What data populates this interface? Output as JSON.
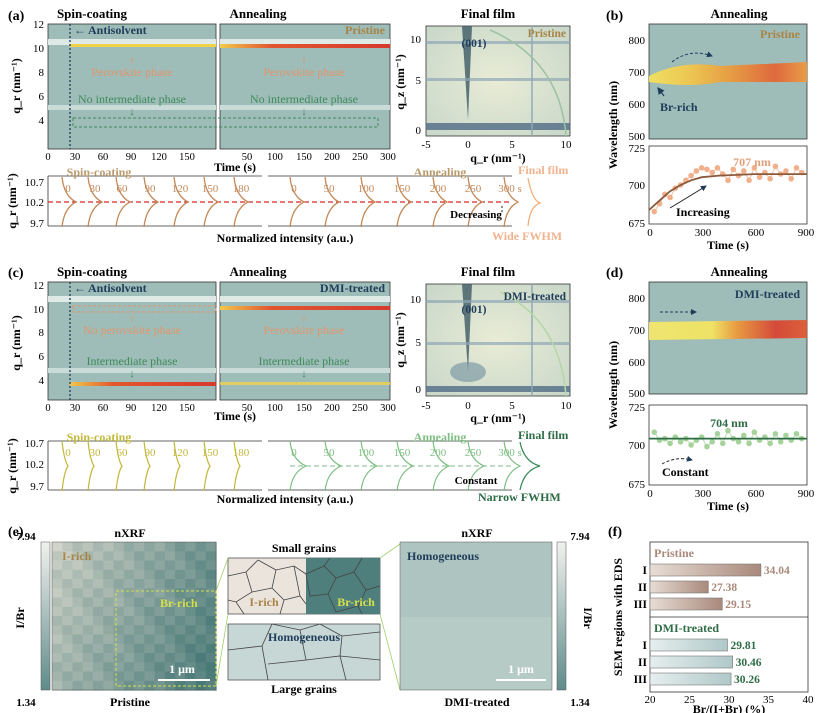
{
  "panels": {
    "a": {
      "label": "(a)",
      "titles": {
        "spin": "Spin-coating",
        "anneal": "Annealing",
        "final": "Final film"
      },
      "ylabel": "q_r (nm⁻¹)",
      "yticks": [
        "12",
        "10",
        "8",
        "6",
        "4"
      ],
      "xlabel": "Time (s)",
      "xticks": [
        "0",
        "30",
        "60",
        "90",
        "120",
        "150",
        "50",
        "100",
        "150",
        "200",
        "250",
        "300"
      ],
      "annotations": {
        "antisolvent": "Antisolvent",
        "pristine": "Pristine",
        "phase1": "Perovskite phase",
        "phase2": "No intermediate phase",
        "phase3": "Perovskite phase",
        "phase4": "No intermediate phase"
      },
      "final": {
        "tag": "Pristine",
        "peak": "(001)",
        "xlabel": "q_r (nm⁻¹)",
        "ylabel": "q_z (nm⁻¹)",
        "xticks": [
          "-5",
          "0",
          "5",
          "10"
        ],
        "yticks": [
          "10",
          "5",
          "0"
        ]
      },
      "profile": {
        "ylabel": "q_r (nm⁻¹)",
        "yticks": [
          "10.7",
          "10.2",
          "9.7"
        ],
        "xlabel": "Normalized intensity (a.u.)",
        "spin_label": "Spin-coating",
        "anneal_label": "Annealing",
        "final_label": "Final film",
        "spin_times": [
          "0",
          "30",
          "60",
          "90",
          "120",
          "150",
          "180"
        ],
        "anneal_times": [
          "0",
          "50",
          "100",
          "150",
          "200",
          "250",
          "300 s"
        ],
        "trend": "Decreasing",
        "fwhm": "Wide FWHM"
      }
    },
    "b": {
      "label": "(b)",
      "title": "Annealing",
      "tag": "Pristine",
      "note": "Br-rich",
      "ylabel": "Wavelength (nm)",
      "yticks_top": [
        "800",
        "700",
        "600",
        "500"
      ],
      "yticks_bot": [
        "725",
        "700",
        "675"
      ],
      "xlabel": "Time (s)",
      "xticks": [
        "0",
        "300",
        "600",
        "900"
      ],
      "value_label": "707 nm",
      "trend": "Increasing"
    },
    "c": {
      "label": "(c)",
      "titles": {
        "spin": "Spin-coating",
        "anneal": "Annealing",
        "final": "Final film"
      },
      "ylabel": "q_r (nm⁻¹)",
      "yticks": [
        "12",
        "10",
        "8",
        "6",
        "4"
      ],
      "xlabel": "Time (s)",
      "xticks": [
        "0",
        "30",
        "60",
        "90",
        "120",
        "150",
        "50",
        "100",
        "150",
        "200",
        "250",
        "300"
      ],
      "annotations": {
        "antisolvent": "Antisolvent",
        "tag": "DMI-treated",
        "phase1": "No perovskite phase",
        "phase2": "Intermediate phase",
        "phase3": "Perovskite phase",
        "phase4": "Intermediate phase"
      },
      "final": {
        "tag": "DMI-treated",
        "peak": "(001)",
        "xlabel": "q_r (nm⁻¹)",
        "ylabel": "q_z (nm⁻¹)",
        "xticks": [
          "-5",
          "0",
          "5",
          "10"
        ],
        "yticks": [
          "10",
          "5",
          "0"
        ]
      },
      "profile": {
        "ylabel": "q_r (nm⁻¹)",
        "yticks": [
          "10.7",
          "10.2",
          "9.7"
        ],
        "xlabel": "Normalized intensity (a.u.)",
        "spin_label": "Spin-coating",
        "anneal_label": "Annealing",
        "final_label": "Final film",
        "spin_times": [
          "0",
          "30",
          "60",
          "90",
          "120",
          "150",
          "180"
        ],
        "anneal_times": [
          "0",
          "50",
          "100",
          "150",
          "200",
          "250",
          "300 s"
        ],
        "trend": "Constant",
        "fwhm": "Narrow FWHM"
      }
    },
    "d": {
      "label": "(d)",
      "title": "Annealing",
      "tag": "DMI-treated",
      "ylabel": "Wavelength (nm)",
      "yticks_top": [
        "800",
        "700",
        "600",
        "500"
      ],
      "yticks_bot": [
        "725",
        "700",
        "675"
      ],
      "xlabel": "Time (s)",
      "xticks": [
        "0",
        "300",
        "600",
        "900"
      ],
      "value_label": "704 nm",
      "trend": "Constant"
    },
    "e": {
      "label": "(e)",
      "left": {
        "title": "nXRF",
        "tag1": "I-rich",
        "tag2": "Br-rich",
        "scale": "1 μm",
        "caption": "Pristine"
      },
      "right": {
        "title": "nXRF",
        "tag": "Homogeneous",
        "scale": "1 μm",
        "caption": "DMI-treated"
      },
      "colorbar": {
        "label": "I/Br",
        "max": "7.94",
        "min": "1.34"
      },
      "middle": {
        "top_title": "Small grains",
        "top_l": "I-rich",
        "top_r": "Br-rich",
        "bot_tag": "Homogeneous",
        "bot_title": "Large grains"
      }
    }
  },
  "chart_data": [
    {
      "type": "line",
      "panel": "b",
      "title": "Annealing",
      "xlabel": "Time (s)",
      "ylabel": "Wavelength (nm)",
      "xlim": [
        0,
        900
      ],
      "ylim": [
        675,
        725
      ],
      "series": [
        {
          "x": [
            30,
            60,
            90,
            120,
            150,
            180,
            210,
            240,
            270,
            300,
            330,
            360,
            390,
            420,
            450,
            480,
            510,
            540,
            570,
            600,
            630,
            660,
            690,
            720,
            750,
            780,
            810,
            840,
            870
          ],
          "y": [
            683,
            688,
            694,
            692,
            698,
            700,
            703,
            706,
            709,
            711,
            710,
            708,
            711,
            707,
            703,
            710,
            706,
            709,
            703,
            711,
            705,
            708,
            704,
            712,
            707,
            709,
            704,
            711,
            708
          ]
        },
        {
          "x": [
            0,
            60,
            120,
            180,
            240,
            300,
            400,
            600,
            900
          ],
          "y": [
            684,
            690,
            696,
            700,
            703,
            705,
            706,
            707,
            707
          ]
        }
      ],
      "annotation": "707 nm"
    },
    {
      "type": "line",
      "panel": "d",
      "title": "Annealing",
      "xlabel": "Time (s)",
      "ylabel": "Wavelength (nm)",
      "xlim": [
        0,
        900
      ],
      "ylim": [
        675,
        725
      ],
      "series": [
        {
          "x": [
            30,
            60,
            90,
            120,
            150,
            180,
            210,
            240,
            270,
            300,
            330,
            360,
            390,
            420,
            450,
            480,
            510,
            540,
            570,
            600,
            630,
            660,
            690,
            720,
            750,
            780,
            810,
            840,
            870
          ],
          "y": [
            708,
            703,
            704,
            701,
            705,
            702,
            704,
            700,
            703,
            705,
            699,
            702,
            707,
            701,
            709,
            704,
            702,
            706,
            701,
            708,
            703,
            705,
            701,
            707,
            702,
            706,
            703,
            707,
            704
          ]
        },
        {
          "x": [
            0,
            900
          ],
          "y": [
            704,
            704
          ]
        }
      ],
      "annotation": "704 nm"
    },
    {
      "type": "bar",
      "panel": "f",
      "ylabel": "SEM regions with EDS",
      "xlabel": "Br/(I+Br)  (%)",
      "xlim": [
        20,
        40
      ],
      "xticks": [
        "20",
        "25",
        "30",
        "35",
        "40"
      ],
      "groups": [
        {
          "name": "Pristine",
          "categories": [
            "I",
            "II",
            "III"
          ],
          "values": [
            34.04,
            27.38,
            29.15
          ],
          "color": "#a9897b"
        },
        {
          "name": "DMI-treated",
          "categories": [
            "I",
            "II",
            "III"
          ],
          "values": [
            29.81,
            30.46,
            30.26
          ],
          "color": "#b9cfcf"
        }
      ],
      "label": "(f)"
    }
  ]
}
